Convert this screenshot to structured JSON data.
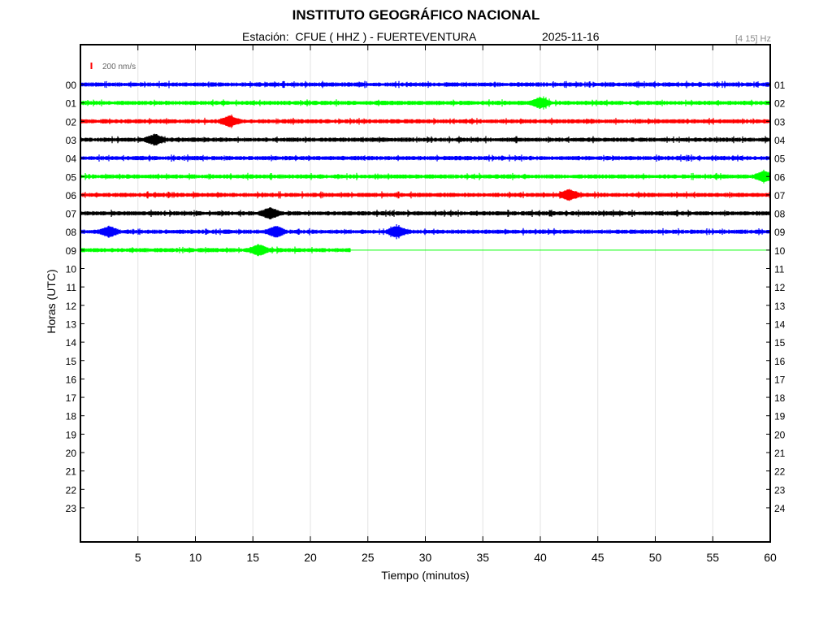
{
  "header": {
    "title": "INSTITUTO GEOGRÁFICO NACIONAL",
    "station": "Estación:  CFUE ( HHZ ) - FUERTEVENTURA",
    "date": "2025-11-16",
    "filter": "[4 15] Hz"
  },
  "chart_data": {
    "type": "line",
    "title": "INSTITUTO GEOGRÁFICO NACIONAL",
    "xlabel": "Tiempo (minutos)",
    "ylabel": "Horas (UTC)",
    "xlim": [
      0,
      60
    ],
    "x_ticks": [
      "5",
      "10",
      "15",
      "20",
      "25",
      "30",
      "35",
      "40",
      "45",
      "50",
      "55",
      "60"
    ],
    "left_hour_labels": [
      "00",
      "01",
      "02",
      "03",
      "04",
      "05",
      "06",
      "07",
      "08",
      "09",
      "10",
      "11",
      "12",
      "13",
      "14",
      "15",
      "16",
      "17",
      "18",
      "19",
      "20",
      "21",
      "22",
      "23"
    ],
    "right_hour_labels": [
      "01",
      "02",
      "03",
      "04",
      "05",
      "06",
      "07",
      "08",
      "09",
      "10",
      "11",
      "12",
      "13",
      "14",
      "15",
      "16",
      "17",
      "18",
      "19",
      "20",
      "21",
      "22",
      "23",
      "24"
    ],
    "scale_label": "200 nm/s",
    "scale_color": "#ff0000",
    "grid": true,
    "series": [
      {
        "hour": "00",
        "color": "#0000ff",
        "end_minute": 60,
        "events": []
      },
      {
        "hour": "01",
        "color": "#00ff00",
        "end_minute": 60,
        "events": [
          40
        ]
      },
      {
        "hour": "02",
        "color": "#ff0000",
        "end_minute": 60,
        "events": [
          13
        ]
      },
      {
        "hour": "03",
        "color": "#000000",
        "end_minute": 60,
        "events": [
          6.5
        ]
      },
      {
        "hour": "04",
        "color": "#0000ff",
        "end_minute": 60,
        "events": []
      },
      {
        "hour": "05",
        "color": "#00ff00",
        "end_minute": 60,
        "events": [
          59.5
        ]
      },
      {
        "hour": "06",
        "color": "#ff0000",
        "end_minute": 60,
        "events": [
          42.5
        ]
      },
      {
        "hour": "07",
        "color": "#000000",
        "end_minute": 60,
        "events": [
          16.5
        ]
      },
      {
        "hour": "08",
        "color": "#0000ff",
        "end_minute": 60,
        "events": [
          2.5,
          17,
          27.5
        ]
      },
      {
        "hour": "09",
        "color": "#00ff00",
        "end_minute": 23.5,
        "events": [
          15.5
        ]
      }
    ]
  }
}
